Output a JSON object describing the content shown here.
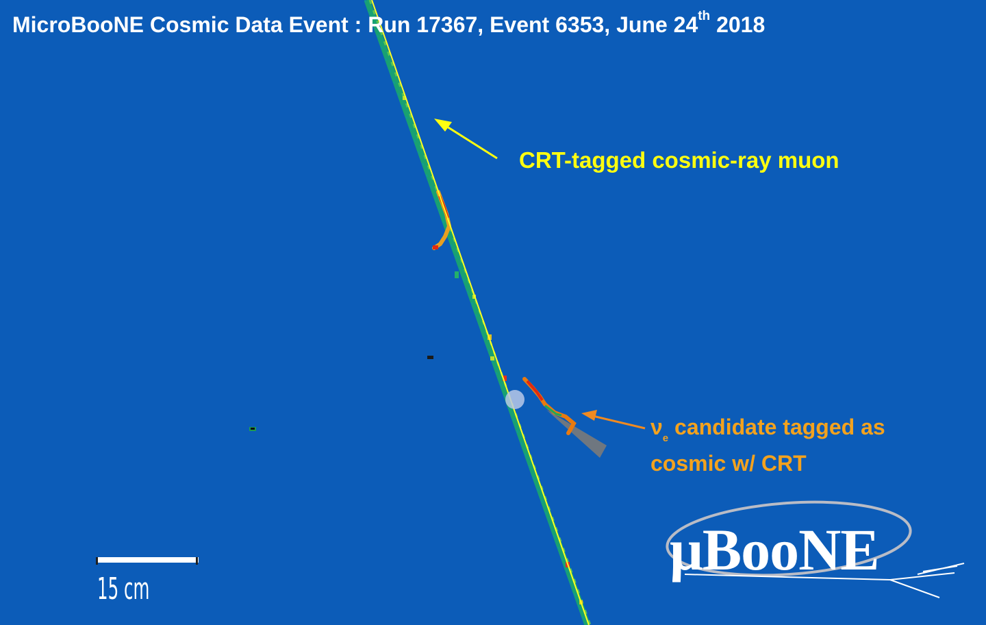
{
  "title": {
    "main": "MicroBooNE Cosmic Data Event : Run 17367, Event 6353, June 24",
    "superscript": "th",
    "year": " 2018"
  },
  "annotations": {
    "muon_label": "CRT-tagged cosmic-ray muon",
    "nue_symbol": "ν",
    "nue_subscript": "e",
    "nue_line1": " candidate tagged as",
    "nue_line2": "cosmic w/ CRT"
  },
  "scale_bar": {
    "label": "15 cm"
  },
  "logo": {
    "text": "μBooNE"
  },
  "colors": {
    "background": "#0c5cb8",
    "track_fit": "#ffff20",
    "muon_annotation": "#ffff10",
    "nue_annotation": "#f3a21e",
    "hit_low": "#2bb04a",
    "hit_high": "#e02a10"
  }
}
